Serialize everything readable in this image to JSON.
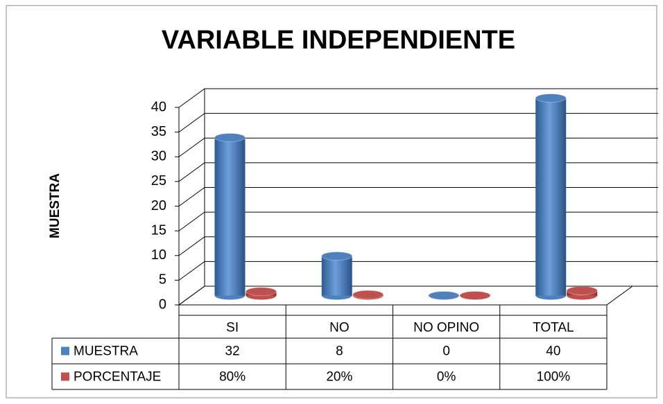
{
  "chart_data": {
    "type": "bar3d",
    "title": "VARIABLE INDEPENDIENTE",
    "y_label": "MUESTRA",
    "categories": [
      "SI",
      "NO",
      "NO OPINO",
      "TOTAL"
    ],
    "series": [
      {
        "name": "MUESTRA",
        "color": "#4f81bd",
        "values": [
          32,
          8,
          0,
          40
        ]
      },
      {
        "name": "PORCENTAJE",
        "color": "#c0504d",
        "values": [
          0.8,
          0.2,
          0,
          1
        ],
        "value_labels": [
          "80%",
          "20%",
          "0%",
          "100%"
        ]
      }
    ],
    "ylim": [
      0,
      40
    ],
    "yticks": [
      0,
      5,
      10,
      15,
      20,
      25,
      30,
      35,
      40
    ],
    "grid": true,
    "data_table": true
  }
}
